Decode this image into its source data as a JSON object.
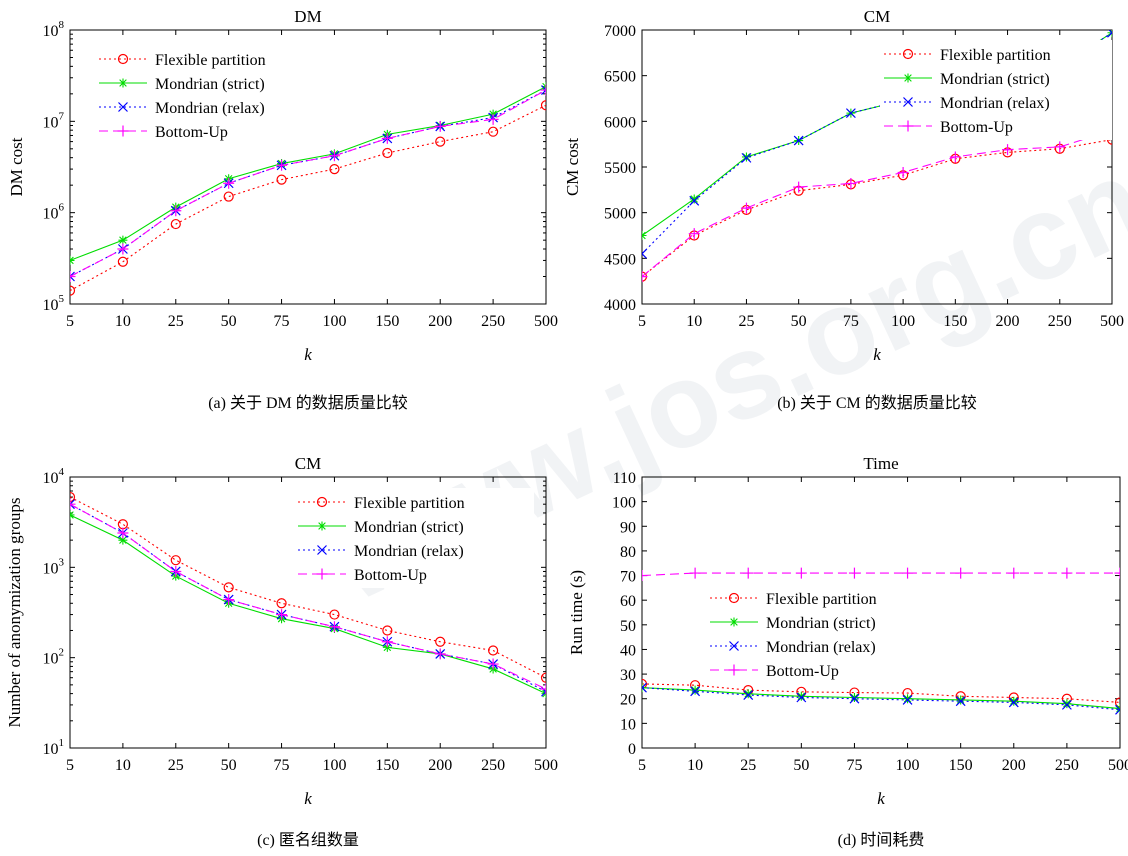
{
  "chart_data": [
    {
      "type": "line",
      "title": "DM",
      "xlabel": "k",
      "ylabel": "DM cost",
      "caption": "(a) 关于 DM 的数据质量比较",
      "yscale": "log",
      "ylim": [
        100000,
        100000000
      ],
      "yticks": [
        {
          "value": 100000,
          "base": "10",
          "exp": "5"
        },
        {
          "value": 1000000,
          "base": "10",
          "exp": "6"
        },
        {
          "value": 10000000,
          "base": "10",
          "exp": "7"
        },
        {
          "value": 100000000,
          "base": "10",
          "exp": "8"
        }
      ],
      "categories": [
        "5",
        "10",
        "25",
        "50",
        "75",
        "100",
        "150",
        "200",
        "250",
        "500"
      ],
      "legend_position": "top-left",
      "series": [
        {
          "name": "Flexible partition",
          "color": "#ff0000",
          "dash": "2,3",
          "marker": "circle",
          "values": [
            140000,
            290000,
            750000,
            1500000,
            2300000,
            3000000,
            4500000,
            6000000,
            7700000,
            15000000
          ]
        },
        {
          "name": "Mondrian (strict)",
          "color": "#00dd00",
          "dash": "",
          "marker": "star",
          "values": [
            300000,
            500000,
            1150000,
            2350000,
            3450000,
            4400000,
            7200000,
            9000000,
            12000000,
            24000000
          ]
        },
        {
          "name": "Mondrian (relax)",
          "color": "#0000ff",
          "dash": "2,3",
          "marker": "x",
          "values": [
            200000,
            400000,
            1050000,
            2100000,
            3300000,
            4200000,
            6500000,
            8800000,
            11000000,
            22000000
          ]
        },
        {
          "name": "Bottom-Up",
          "color": "#ff00ff",
          "dash": "9,5",
          "marker": "plus",
          "values": [
            200000,
            400000,
            1050000,
            2100000,
            3300000,
            4200000,
            6500000,
            8800000,
            10500000,
            22000000
          ]
        }
      ]
    },
    {
      "type": "line",
      "title": "CM",
      "xlabel": "k",
      "ylabel": "CM cost",
      "caption": "(b) 关于 CM 的数据质量比较",
      "yscale": "linear",
      "ylim": [
        4000,
        7000
      ],
      "yticks": [
        4000,
        4500,
        5000,
        5500,
        6000,
        6500,
        7000
      ],
      "categories": [
        "5",
        "10",
        "25",
        "50",
        "75",
        "100",
        "150",
        "200",
        "250",
        "500"
      ],
      "legend_position": "top-right",
      "series": [
        {
          "name": "Flexible partition",
          "color": "#ff0000",
          "dash": "2,3",
          "marker": "circle",
          "values": [
            4300,
            4750,
            5030,
            5240,
            5310,
            5410,
            5590,
            5660,
            5700,
            5800
          ]
        },
        {
          "name": "Mondrian (strict)",
          "color": "#00dd00",
          "dash": "",
          "marker": "star",
          "values": [
            4750,
            5150,
            5610,
            5790,
            6090,
            6230,
            6350,
            6450,
            6600,
            6970
          ]
        },
        {
          "name": "Mondrian (relax)",
          "color": "#0000ff",
          "dash": "2,3",
          "marker": "x",
          "values": [
            4550,
            5130,
            5600,
            5790,
            6090,
            6230,
            6350,
            6450,
            6600,
            6970
          ]
        },
        {
          "name": "Bottom-Up",
          "color": "#ff00ff",
          "dash": "9,5",
          "marker": "plus",
          "values": [
            4300,
            4770,
            5050,
            5280,
            5320,
            5440,
            5610,
            5690,
            5720,
            5900
          ]
        }
      ]
    },
    {
      "type": "line",
      "title": "CM",
      "xlabel": "k",
      "ylabel": "Number of anonymization groups",
      "caption": "(c) 匿名组数量",
      "yscale": "log",
      "ylim": [
        10,
        10000
      ],
      "yticks": [
        {
          "value": 10,
          "base": "10",
          "exp": "1"
        },
        {
          "value": 100,
          "base": "10",
          "exp": "2"
        },
        {
          "value": 1000,
          "base": "10",
          "exp": "3"
        },
        {
          "value": 10000,
          "base": "10",
          "exp": "4"
        }
      ],
      "categories": [
        "5",
        "10",
        "25",
        "50",
        "75",
        "100",
        "150",
        "200",
        "250",
        "500"
      ],
      "legend_position": "top-right",
      "series": [
        {
          "name": "Flexible partition",
          "color": "#ff0000",
          "dash": "2,3",
          "marker": "circle",
          "values": [
            6000,
            3000,
            1200,
            600,
            400,
            300,
            200,
            150,
            120,
            60
          ]
        },
        {
          "name": "Mondrian (strict)",
          "color": "#00dd00",
          "dash": "",
          "marker": "star",
          "values": [
            3800,
            2000,
            800,
            400,
            270,
            210,
            130,
            110,
            75,
            40
          ]
        },
        {
          "name": "Mondrian (relax)",
          "color": "#0000ff",
          "dash": "2,3",
          "marker": "x",
          "values": [
            5000,
            2400,
            900,
            440,
            300,
            220,
            150,
            110,
            85,
            42
          ]
        },
        {
          "name": "Bottom-Up",
          "color": "#ff00ff",
          "dash": "9,5",
          "marker": "plus",
          "values": [
            5000,
            2400,
            900,
            440,
            300,
            220,
            150,
            110,
            85,
            45
          ]
        }
      ]
    },
    {
      "type": "line",
      "title": "Time",
      "xlabel": "k",
      "ylabel": "Run time (s)",
      "caption": "(d) 时间耗费",
      "yscale": "linear",
      "ylim": [
        0,
        110
      ],
      "yticks": [
        0,
        10,
        20,
        30,
        40,
        50,
        60,
        70,
        80,
        90,
        100,
        110
      ],
      "categories": [
        "5",
        "10",
        "25",
        "50",
        "75",
        "100",
        "150",
        "200",
        "250",
        "500"
      ],
      "legend_position": "center",
      "series": [
        {
          "name": "Flexible partition",
          "color": "#ff0000",
          "dash": "2,3",
          "marker": "circle",
          "values": [
            26,
            25.5,
            23.5,
            22.8,
            22.5,
            22.3,
            21,
            20.5,
            20,
            18.5
          ]
        },
        {
          "name": "Mondrian (strict)",
          "color": "#00dd00",
          "dash": "",
          "marker": "star",
          "values": [
            24.5,
            23.5,
            22,
            21,
            20.5,
            20,
            19.5,
            19,
            18,
            16
          ]
        },
        {
          "name": "Mondrian (relax)",
          "color": "#0000ff",
          "dash": "2,3",
          "marker": "x",
          "values": [
            24.5,
            23,
            21.5,
            20.5,
            20,
            19.5,
            19,
            18.5,
            17.5,
            15.5
          ]
        },
        {
          "name": "Bottom-Up",
          "color": "#ff00ff",
          "dash": "9,5",
          "marker": "plus",
          "values": [
            70,
            71,
            71,
            71,
            71,
            71,
            71,
            71,
            71,
            71
          ]
        }
      ]
    }
  ]
}
